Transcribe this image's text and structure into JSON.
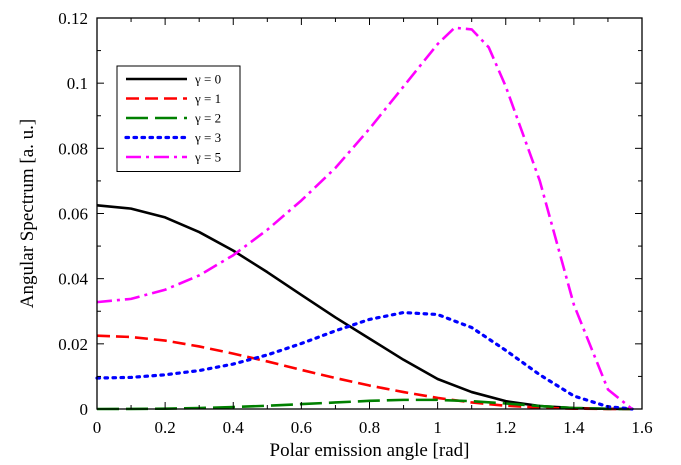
{
  "chart_data": {
    "type": "line",
    "title": "",
    "xlabel": "Polar emission angle [rad]",
    "ylabel": "Angular Spectrum [a. u.]",
    "xlim": [
      0,
      1.6
    ],
    "ylim": [
      0,
      0.12
    ],
    "xticks": [
      0,
      0.2,
      0.4,
      0.6,
      0.8,
      1,
      1.2,
      1.4,
      1.6
    ],
    "xtick_labels": [
      "0",
      "0.2",
      "0.4",
      "0.6",
      "0.8",
      "1",
      "1.2",
      "1.4",
      "1.6"
    ],
    "yticks": [
      0,
      0.02,
      0.04,
      0.06,
      0.08,
      0.1,
      0.12
    ],
    "ytick_labels": [
      "0",
      "0.02",
      "0.04",
      "0.06",
      "0.08",
      "0.1",
      "0.12"
    ],
    "grid": false,
    "legend_position": "top-left",
    "series": [
      {
        "name": "γ = 0",
        "color": "#000000",
        "dash": "solid",
        "x": [
          0,
          0.1,
          0.2,
          0.3,
          0.4,
          0.5,
          0.6,
          0.7,
          0.8,
          0.9,
          1.0,
          1.1,
          1.2,
          1.3,
          1.4,
          1.5,
          1.5708
        ],
        "y": [
          0.0625,
          0.0615,
          0.0588,
          0.0543,
          0.0486,
          0.042,
          0.035,
          0.0281,
          0.0216,
          0.0151,
          0.0092,
          0.0052,
          0.0024,
          0.0009,
          0.0003,
          5e-05,
          0
        ]
      },
      {
        "name": "γ = 1",
        "color": "#ff0000",
        "dash": "dashed",
        "x": [
          0,
          0.1,
          0.2,
          0.3,
          0.4,
          0.5,
          0.6,
          0.7,
          0.8,
          0.9,
          1.0,
          1.1,
          1.2,
          1.3,
          1.4,
          1.5,
          1.5708
        ],
        "y": [
          0.0225,
          0.0221,
          0.021,
          0.0192,
          0.017,
          0.0146,
          0.012,
          0.0095,
          0.0072,
          0.0052,
          0.0034,
          0.002,
          0.001,
          0.0004,
          0.0001,
          2e-05,
          0
        ]
      },
      {
        "name": "γ = 2",
        "color": "#008000",
        "dash": "long-dash",
        "x": [
          0,
          0.1,
          0.2,
          0.3,
          0.4,
          0.5,
          0.6,
          0.7,
          0.8,
          0.9,
          1.0,
          1.1,
          1.2,
          1.3,
          1.4,
          1.5,
          1.5708
        ],
        "y": [
          0,
          3e-05,
          0.0001,
          0.0003,
          0.0006,
          0.001,
          0.0015,
          0.002,
          0.0025,
          0.0028,
          0.0028,
          0.0024,
          0.0017,
          0.0009,
          0.0003,
          5e-05,
          0
        ]
      },
      {
        "name": "γ = 3",
        "color": "#0000ff",
        "dash": "dotted",
        "x": [
          0,
          0.1,
          0.2,
          0.3,
          0.4,
          0.5,
          0.6,
          0.7,
          0.8,
          0.9,
          1.0,
          1.1,
          1.2,
          1.3,
          1.4,
          1.5,
          1.5708
        ],
        "y": [
          0.0095,
          0.0097,
          0.0105,
          0.0118,
          0.0138,
          0.0166,
          0.0201,
          0.024,
          0.0275,
          0.0296,
          0.029,
          0.025,
          0.018,
          0.0105,
          0.004,
          0.0007,
          0
        ]
      },
      {
        "name": "γ = 5",
        "color": "#ff00ff",
        "dash": "dash-dot",
        "x": [
          0,
          0.1,
          0.2,
          0.3,
          0.4,
          0.5,
          0.6,
          0.7,
          0.8,
          0.9,
          1.0,
          1.05,
          1.1,
          1.15,
          1.2,
          1.3,
          1.4,
          1.5,
          1.5708
        ],
        "y": [
          0.0328,
          0.0338,
          0.0366,
          0.041,
          0.0472,
          0.055,
          0.064,
          0.074,
          0.086,
          0.099,
          0.112,
          0.117,
          0.1165,
          0.111,
          0.099,
          0.07,
          0.032,
          0.006,
          0
        ]
      }
    ]
  }
}
